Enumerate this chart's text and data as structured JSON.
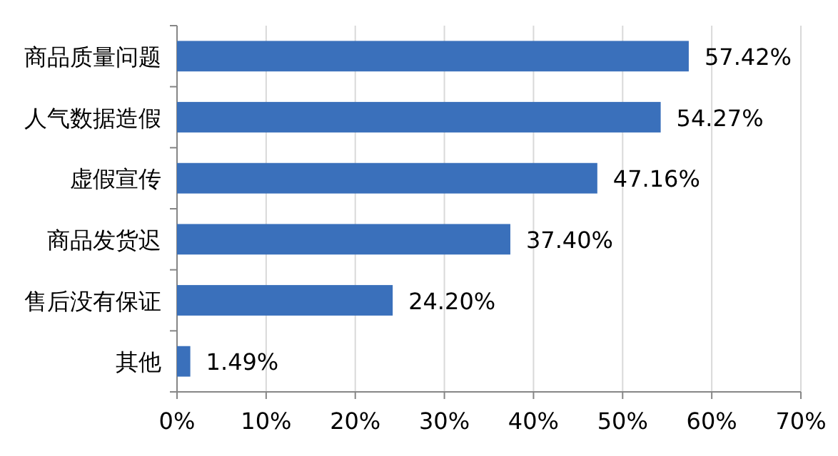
{
  "chart_data": {
    "type": "bar",
    "orientation": "horizontal",
    "categories": [
      "商品质量问题",
      "人气数据造假",
      "虚假宣传",
      "商品发货迟",
      "售后没有保证",
      "其他"
    ],
    "values": [
      57.42,
      54.27,
      47.16,
      37.4,
      24.2,
      1.49
    ],
    "value_labels": [
      "57.42%",
      "54.27%",
      "47.16%",
      "37.40%",
      "24.20%",
      "1.49%"
    ],
    "color": "#3a70bb",
    "xlim": [
      0,
      70
    ],
    "xticks": [
      {
        "value": 0,
        "label": "0%"
      },
      {
        "value": 10,
        "label": "10%"
      },
      {
        "value": 20,
        "label": "20%"
      },
      {
        "value": 30,
        "label": "30%"
      },
      {
        "value": 40,
        "label": "40%"
      },
      {
        "value": 50,
        "label": "50%"
      },
      {
        "value": 60,
        "label": "60%"
      },
      {
        "value": 70,
        "label": "70%"
      }
    ],
    "grid": "x"
  }
}
